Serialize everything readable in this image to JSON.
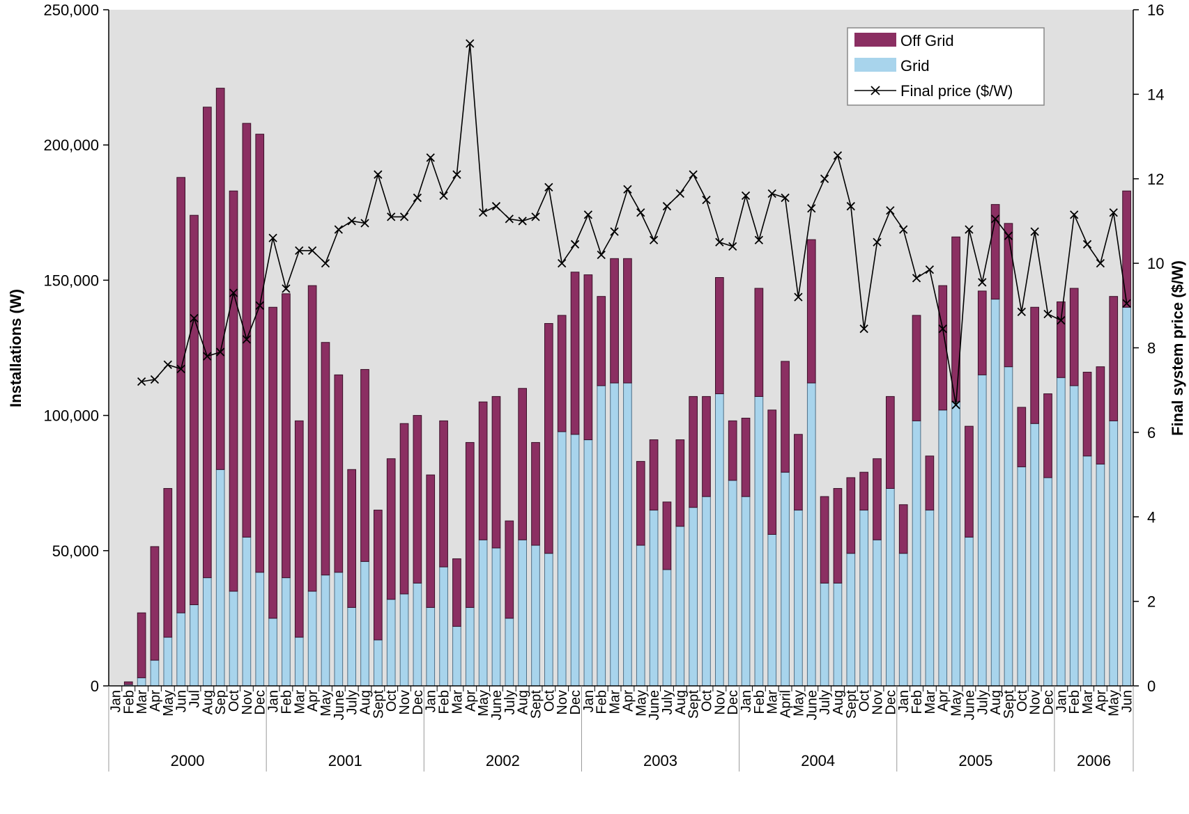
{
  "chart_data": {
    "type": "bar",
    "stacked": true,
    "dual_axis": true,
    "xlabel": "",
    "ylabel": "Installations (W)",
    "y2label": "Final system price ($/W)",
    "ylim": [
      0,
      250000
    ],
    "y2lim": [
      0,
      16
    ],
    "yticks": [
      "0",
      "50,000",
      "100,000",
      "150,000",
      "200,000",
      "250,000"
    ],
    "y2ticks": [
      "0",
      "2",
      "4",
      "6",
      "8",
      "10",
      "12",
      "14",
      "16"
    ],
    "grid": false,
    "legend_position": "top-right",
    "colors": {
      "off_grid": "#8B2F62",
      "grid": "#A8D4EC",
      "plot_bg": "#E0E0E0",
      "price_line": "#000000"
    },
    "legend": {
      "off_grid": "Off Grid",
      "grid": "Grid",
      "price": "Final price ($/W)"
    },
    "years": [
      {
        "label": "2000",
        "months": 12
      },
      {
        "label": "2001",
        "months": 12
      },
      {
        "label": "2002",
        "months": 12
      },
      {
        "label": "2003",
        "months": 12
      },
      {
        "label": "2004",
        "months": 12
      },
      {
        "label": "2005",
        "months": 12
      },
      {
        "label": "2006",
        "months": 6
      }
    ],
    "categories": [
      "Jan",
      "Feb",
      "Mar",
      "Apr",
      "May",
      "Jun",
      "Jul",
      "Aug",
      "Sep",
      "Oct",
      "Nov",
      "Dec",
      "Jan",
      "Feb",
      "Mar",
      "Apr",
      "May",
      "June",
      "July",
      "Aug",
      "Sept",
      "Oct",
      "Nov",
      "Dec",
      "Jan",
      "Feb",
      "Mar",
      "Apr",
      "May",
      "June",
      "July",
      "Aug",
      "Sept",
      "Oct",
      "Nov",
      "Dec",
      "Jan",
      "Feb",
      "Mar",
      "Apr",
      "May",
      "June",
      "July",
      "Aug",
      "Sept",
      "Oct",
      "Nov",
      "Dec",
      "Jan",
      "Feb",
      "Mar",
      "April",
      "May",
      "June",
      "July",
      "Aug",
      "Sept",
      "Oct",
      "Nov",
      "Dec",
      "Jan",
      "Feb",
      "Mar",
      "Apr",
      "May",
      "June",
      "July",
      "Aug",
      "Sept",
      "Oct",
      "Nov",
      "Dec",
      "Jan",
      "Feb",
      "Mar",
      "Apr",
      "May",
      "Jun"
    ],
    "series": [
      {
        "name": "Grid",
        "values": [
          0,
          500,
          3000,
          9500,
          18000,
          27000,
          30000,
          40000,
          80000,
          35000,
          55000,
          42000,
          25000,
          40000,
          18000,
          35000,
          41000,
          42000,
          29000,
          46000,
          17000,
          32000,
          34000,
          38000,
          29000,
          44000,
          22000,
          29000,
          54000,
          51000,
          25000,
          54000,
          52000,
          49000,
          94000,
          93000,
          91000,
          111000,
          112000,
          112000,
          52000,
          65000,
          43000,
          59000,
          66000,
          70000,
          108000,
          76000,
          70000,
          107000,
          56000,
          79000,
          65000,
          112000,
          38000,
          38000,
          49000,
          65000,
          54000,
          73000,
          49000,
          98000,
          65000,
          102000,
          105000,
          55000,
          115000,
          143000,
          118000,
          81000,
          97000,
          77000,
          114000,
          111000,
          85000,
          82000,
          98000,
          140000
        ]
      },
      {
        "name": "Off Grid",
        "values": [
          0,
          1000,
          24000,
          42000,
          55000,
          161000,
          144000,
          174000,
          141000,
          148000,
          153000,
          162000,
          115000,
          105000,
          80000,
          113000,
          86000,
          73000,
          51000,
          71000,
          48000,
          52000,
          63000,
          62000,
          49000,
          54000,
          25000,
          61000,
          51000,
          56000,
          36000,
          56000,
          38000,
          85000,
          43000,
          60000,
          61000,
          33000,
          46000,
          46000,
          31000,
          26000,
          25000,
          32000,
          41000,
          37000,
          43000,
          22000,
          29000,
          40000,
          46000,
          41000,
          28000,
          53000,
          32000,
          35000,
          28000,
          14000,
          30000,
          34000,
          18000,
          39000,
          20000,
          46000,
          61000,
          41000,
          31000,
          35000,
          53000,
          22000,
          43000,
          31000,
          28000,
          36000,
          31000,
          36000,
          46000,
          43000
        ]
      },
      {
        "name": "Final price ($/W)",
        "values": [
          null,
          null,
          7.2,
          7.25,
          7.6,
          7.5,
          8.7,
          7.8,
          7.9,
          9.3,
          8.2,
          9.0,
          10.6,
          9.4,
          10.3,
          10.3,
          10.0,
          10.8,
          11.0,
          10.95,
          12.1,
          11.1,
          11.1,
          11.55,
          12.5,
          11.6,
          12.1,
          15.2,
          11.2,
          11.35,
          11.05,
          11.0,
          11.1,
          11.8,
          10.0,
          10.45,
          11.15,
          10.2,
          10.75,
          11.75,
          11.2,
          10.55,
          11.35,
          11.65,
          12.1,
          11.5,
          10.5,
          10.4,
          11.6,
          10.55,
          11.65,
          11.55,
          9.2,
          11.3,
          12.0,
          12.55,
          11.35,
          8.45,
          10.5,
          11.25,
          10.8,
          9.65,
          9.85,
          8.45,
          6.65,
          10.8,
          9.55,
          11.05,
          10.65,
          8.85,
          10.75,
          8.8,
          8.65,
          11.15,
          10.45,
          10.0,
          11.2,
          9.05
        ]
      }
    ]
  }
}
